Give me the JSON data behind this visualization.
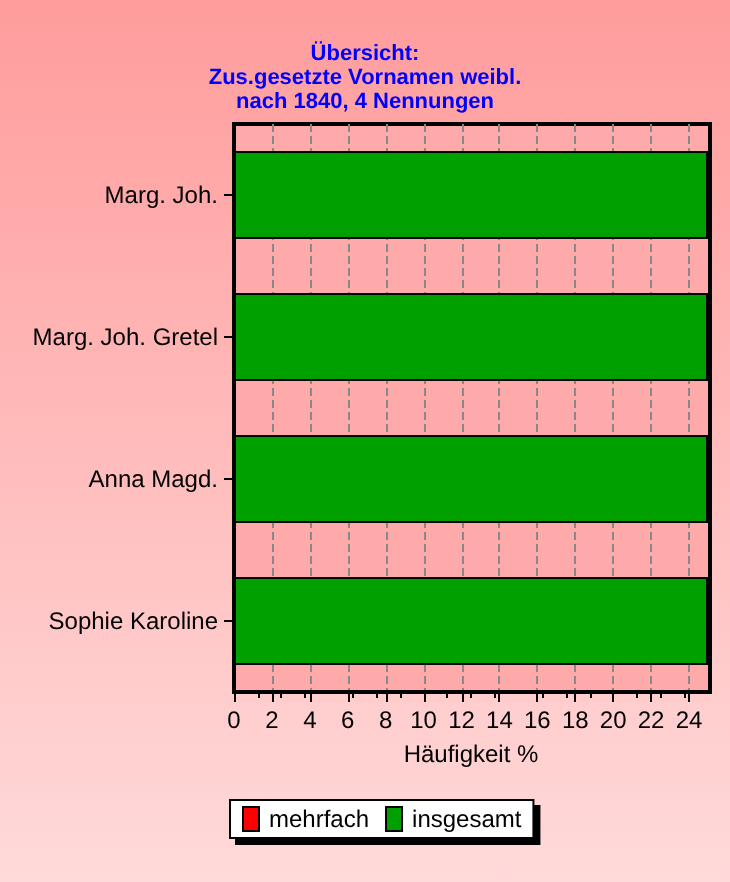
{
  "chart_data": {
    "type": "bar",
    "orientation": "horizontal",
    "title": "Übersicht:\nZus.gesetzte Vornamen weibl.\nnach 1840, 4 Nennungen",
    "xlabel": "Häufigkeit %",
    "categories": [
      "Marg. Joh.",
      "Marg. Joh. Gretel",
      "Anna Magd.",
      "Sophie Karoline"
    ],
    "series": [
      {
        "name": "mehrfach",
        "color": "#ff0000",
        "values": [
          0,
          0,
          0,
          0
        ]
      },
      {
        "name": "insgesamt",
        "color": "#00a000",
        "values": [
          25,
          25,
          25,
          25
        ]
      }
    ],
    "xlim": [
      0,
      25
    ],
    "xticks": [
      0,
      2,
      4,
      6,
      8,
      10,
      12,
      14,
      16,
      18,
      20,
      22,
      24
    ],
    "grid": "x",
    "legend": "bottom"
  }
}
